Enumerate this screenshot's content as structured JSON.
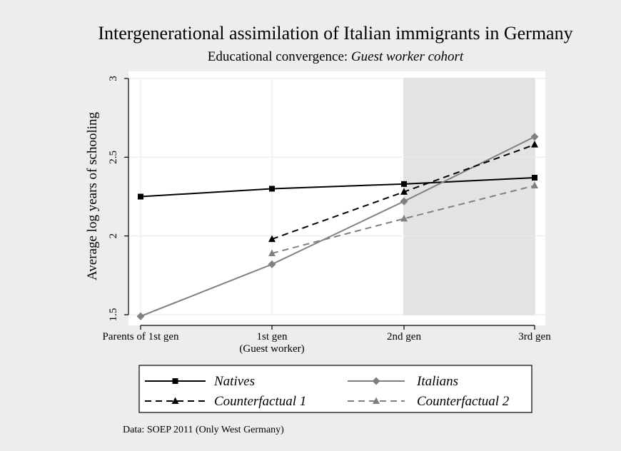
{
  "chart_data": {
    "type": "line",
    "title": "Intergenerational assimilation of Italian immigrants in Germany",
    "subtitle_prefix": "Educational convergence: ",
    "subtitle_emph": "Guest worker cohort",
    "ylabel": "Average log years of schooling",
    "xlabel": "",
    "ylim": [
      1.5,
      3.0
    ],
    "yticks": [
      1.5,
      2,
      2.5,
      3
    ],
    "ytick_labels": [
      "1.5",
      "2",
      "2.5",
      "3"
    ],
    "categories": [
      "Parents of 1st gen",
      "1st gen",
      "2nd gen",
      "3rd gen"
    ],
    "category_sublabels": [
      "",
      "(Guest worker)",
      "",
      ""
    ],
    "shaded_region": {
      "from_category": 2,
      "to_category": 3,
      "ymin": 1.5,
      "ymax": 3.0,
      "color": "#e3e3e3"
    },
    "grid": true,
    "legend_position": "bottom",
    "series": [
      {
        "name": "Natives",
        "values": [
          2.25,
          2.3,
          2.33,
          2.37
        ],
        "color": "#000000",
        "dash": "solid",
        "marker": "square"
      },
      {
        "name": "Italians",
        "values": [
          1.49,
          1.82,
          2.22,
          2.63
        ],
        "color": "#808080",
        "dash": "solid",
        "marker": "diamond"
      },
      {
        "name": "Counterfactual 1",
        "values": [
          null,
          1.98,
          2.28,
          2.58
        ],
        "color": "#000000",
        "dash": "dashed",
        "marker": "triangle"
      },
      {
        "name": "Counterfactual 2",
        "values": [
          null,
          1.89,
          2.11,
          2.32
        ],
        "color": "#808080",
        "dash": "dashed",
        "marker": "triangle"
      }
    ],
    "note": "Data: SOEP 2011 (Only West Germany)"
  }
}
